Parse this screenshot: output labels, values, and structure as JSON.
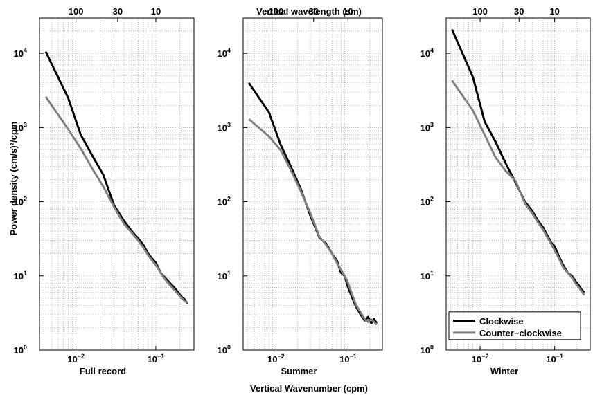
{
  "figure": {
    "top_title": "Vertical wavelength (sm)",
    "bottom_title": "Vertical Wavenumber (cpm)",
    "ylabel": "Power density (cm/s)²/cpm"
  },
  "legend": {
    "entries": [
      {
        "label": "Clockwise",
        "color": "#000000"
      },
      {
        "label": "Counter−clockwise",
        "color": "#808080"
      }
    ]
  },
  "chart_data": [
    {
      "type": "line",
      "xscale": "log",
      "yscale": "log",
      "xlim": [
        0.0035,
        0.3
      ],
      "ylim": [
        1,
        30000
      ],
      "xlabel": "Full record",
      "x_ticks": [
        {
          "value": 0.01,
          "base": "10",
          "exp": "−2"
        },
        {
          "value": 0.1,
          "base": "10",
          "exp": "−1"
        }
      ],
      "y_ticks": [
        {
          "value": 1,
          "exp": "0"
        },
        {
          "value": 10,
          "exp": "1"
        },
        {
          "value": 100,
          "exp": "2"
        },
        {
          "value": 1000,
          "exp": "3"
        },
        {
          "value": 10000,
          "exp": "4"
        }
      ],
      "top_ticks": [
        {
          "value": 0.01,
          "label": "100"
        },
        {
          "value": 0.0333,
          "label": "30"
        },
        {
          "value": 0.1,
          "label": "10"
        }
      ],
      "grid": true,
      "series": [
        {
          "name": "Clockwise",
          "color": "#000000",
          "x": [
            0.0042,
            0.008,
            0.0115,
            0.016,
            0.022,
            0.03,
            0.04,
            0.05,
            0.06,
            0.07,
            0.08,
            0.09,
            0.1,
            0.115,
            0.13,
            0.15,
            0.17,
            0.19,
            0.21,
            0.23,
            0.25
          ],
          "y": [
            10500,
            2500,
            800,
            420,
            230,
            90,
            55,
            40,
            32,
            26,
            20,
            17,
            15,
            11,
            9.5,
            8,
            7,
            6,
            5.2,
            4.8,
            4.2
          ]
        },
        {
          "name": "Counter−clockwise",
          "color": "#808080",
          "x": [
            0.0042,
            0.008,
            0.0115,
            0.016,
            0.022,
            0.03,
            0.04,
            0.05,
            0.06,
            0.07,
            0.08,
            0.09,
            0.1,
            0.115,
            0.13,
            0.15,
            0.17,
            0.19,
            0.21,
            0.23,
            0.25
          ],
          "y": [
            2600,
            950,
            520,
            280,
            160,
            85,
            50,
            38,
            30,
            24,
            19,
            16,
            14,
            11,
            9,
            7.5,
            6.5,
            5.7,
            5,
            4.6,
            4.3
          ]
        }
      ]
    },
    {
      "type": "line",
      "xscale": "log",
      "yscale": "log",
      "xlim": [
        0.0035,
        0.3
      ],
      "ylim": [
        1,
        30000
      ],
      "xlabel": "Summer",
      "x_ticks": [
        {
          "value": 0.01,
          "base": "10",
          "exp": "−2"
        },
        {
          "value": 0.1,
          "base": "10",
          "exp": "−1"
        }
      ],
      "y_ticks": [
        {
          "value": 1,
          "exp": "0"
        },
        {
          "value": 10,
          "exp": "1"
        },
        {
          "value": 100,
          "exp": "2"
        },
        {
          "value": 1000,
          "exp": "3"
        },
        {
          "value": 10000,
          "exp": "4"
        }
      ],
      "top_ticks": [
        {
          "value": 0.01,
          "label": "100"
        },
        {
          "value": 0.0333,
          "label": "30"
        },
        {
          "value": 0.1,
          "label": "10"
        }
      ],
      "grid": true,
      "series": [
        {
          "name": "Clockwise",
          "color": "#000000",
          "x": [
            0.0042,
            0.008,
            0.0115,
            0.016,
            0.022,
            0.03,
            0.04,
            0.05,
            0.06,
            0.07,
            0.08,
            0.09,
            0.1,
            0.115,
            0.13,
            0.15,
            0.17,
            0.19,
            0.21,
            0.23,
            0.25
          ],
          "y": [
            4000,
            1600,
            600,
            300,
            150,
            65,
            33,
            27,
            20,
            16,
            11,
            10,
            7,
            5,
            3.8,
            3,
            2.5,
            2.8,
            2.3,
            2.6,
            2.3
          ]
        },
        {
          "name": "Counter−clockwise",
          "color": "#808080",
          "x": [
            0.0042,
            0.008,
            0.0115,
            0.016,
            0.022,
            0.03,
            0.04,
            0.05,
            0.06,
            0.07,
            0.08,
            0.09,
            0.1,
            0.115,
            0.13,
            0.15,
            0.17,
            0.19,
            0.21,
            0.23,
            0.25
          ],
          "y": [
            1300,
            760,
            500,
            270,
            140,
            70,
            34,
            26,
            20,
            15,
            12,
            10,
            8,
            5.5,
            4,
            3.2,
            2.6,
            2.4,
            2.6,
            2.4,
            2.2
          ]
        }
      ]
    },
    {
      "type": "line",
      "xscale": "log",
      "yscale": "log",
      "xlim": [
        0.0035,
        0.3
      ],
      "ylim": [
        1,
        30000
      ],
      "xlabel": "Winter",
      "x_ticks": [
        {
          "value": 0.01,
          "base": "10",
          "exp": "−2"
        },
        {
          "value": 0.1,
          "base": "10",
          "exp": "−1"
        }
      ],
      "y_ticks": [
        {
          "value": 1,
          "exp": "0"
        },
        {
          "value": 10,
          "exp": "1"
        },
        {
          "value": 100,
          "exp": "2"
        },
        {
          "value": 1000,
          "exp": "3"
        },
        {
          "value": 10000,
          "exp": "4"
        }
      ],
      "top_ticks": [
        {
          "value": 0.01,
          "label": "100"
        },
        {
          "value": 0.0333,
          "label": "30"
        },
        {
          "value": 0.1,
          "label": "10"
        }
      ],
      "grid": true,
      "legend": "bottom-left",
      "series": [
        {
          "name": "Clockwise",
          "color": "#000000",
          "x": [
            0.0042,
            0.008,
            0.0115,
            0.016,
            0.022,
            0.03,
            0.04,
            0.05,
            0.06,
            0.07,
            0.08,
            0.09,
            0.1,
            0.115,
            0.13,
            0.15,
            0.17,
            0.19,
            0.21,
            0.23,
            0.25
          ],
          "y": [
            21000,
            4800,
            1200,
            650,
            330,
            180,
            100,
            75,
            55,
            45,
            35,
            28,
            25,
            18,
            14,
            11,
            10,
            8.5,
            7.5,
            6.5,
            6
          ]
        },
        {
          "name": "Counter−clockwise",
          "color": "#808080",
          "x": [
            0.0042,
            0.008,
            0.0115,
            0.016,
            0.022,
            0.03,
            0.04,
            0.05,
            0.06,
            0.07,
            0.08,
            0.09,
            0.1,
            0.115,
            0.13,
            0.15,
            0.17,
            0.19,
            0.21,
            0.23,
            0.25
          ],
          "y": [
            4300,
            1700,
            800,
            400,
            260,
            190,
            95,
            70,
            52,
            42,
            33,
            27,
            22,
            17,
            13,
            11,
            9.5,
            8,
            7,
            6.2,
            5.5
          ]
        }
      ]
    }
  ]
}
